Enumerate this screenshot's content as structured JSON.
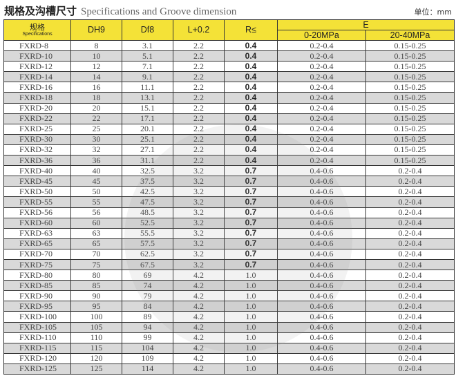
{
  "title": {
    "cn": "规格及沟槽尺寸",
    "en": "Specifications and Groove dimension"
  },
  "unit": "单位：mm",
  "colors": {
    "header": "#f4e237",
    "alt_row": "#d9d9d9",
    "border": "#333333"
  },
  "watermark": "邯郸市鑫液液压机械有限公司",
  "headers": {
    "spec_cn": "规格",
    "spec_en": "Specifications",
    "dh9": "DH9",
    "df8": "Df8",
    "l": "L+0.2",
    "r": "R≤",
    "e": "E",
    "e1": "0-20MPa",
    "e2": "20-40MPa"
  },
  "rows": [
    [
      "FXRD-8",
      "8",
      "3.1",
      "2.2",
      "0.4",
      "0.2-0.4",
      "0.15-0.25"
    ],
    [
      "FXRD-10",
      "10",
      "5.1",
      "2.2",
      "0.4",
      "0.2-0.4",
      "0.15-0.25"
    ],
    [
      "FXRD-12",
      "12",
      "7.1",
      "2.2",
      "0.4",
      "0.2-0.4",
      "0.15-0.25"
    ],
    [
      "FXRD-14",
      "14",
      "9.1",
      "2.2",
      "0.4",
      "0.2-0.4",
      "0.15-0.25"
    ],
    [
      "FXRD-16",
      "16",
      "11.1",
      "2.2",
      "0.4",
      "0.2-0.4",
      "0.15-0.25"
    ],
    [
      "FXRD-18",
      "18",
      "13.1",
      "2.2",
      "0.4",
      "0.2-0.4",
      "0.15-0.25"
    ],
    [
      "FXRD-20",
      "20",
      "15.1",
      "2.2",
      "0.4",
      "0.2-0.4",
      "0.15-0.25"
    ],
    [
      "FXRD-22",
      "22",
      "17.1",
      "2.2",
      "0.4",
      "0.2-0.4",
      "0.15-0.25"
    ],
    [
      "FXRD-25",
      "25",
      "20.1",
      "2.2",
      "0.4",
      "0.2-0.4",
      "0.15-0.25"
    ],
    [
      "FXRD-30",
      "30",
      "25.1",
      "2.2",
      "0.4",
      "0.2-0.4",
      "0.15-0.25"
    ],
    [
      "FXRD-32",
      "32",
      "27.1",
      "2.2",
      "0.4",
      "0.2-0.4",
      "0.15-0.25"
    ],
    [
      "FXRD-36",
      "36",
      "31.1",
      "2.2",
      "0.4",
      "0.2-0.4",
      "0.15-0.25"
    ],
    [
      "FXRD-40",
      "40",
      "32.5",
      "3.2",
      "0.7",
      "0.4-0.6",
      "0.2-0.4"
    ],
    [
      "FXRD-45",
      "45",
      "37.5",
      "3.2",
      "0.7",
      "0.4-0.6",
      "0.2-0.4"
    ],
    [
      "FXRD-50",
      "50",
      "42.5",
      "3.2",
      "0.7",
      "0.4-0.6",
      "0.2-0.4"
    ],
    [
      "FXRD-55",
      "55",
      "47.5",
      "3.2",
      "0.7",
      "0.4-0.6",
      "0.2-0.4"
    ],
    [
      "FXRD-56",
      "56",
      "48.5",
      "3.2",
      "0.7",
      "0.4-0.6",
      "0.2-0.4"
    ],
    [
      "FXRD-60",
      "60",
      "52.5",
      "3.2",
      "0.7",
      "0.4-0.6",
      "0.2-0.4"
    ],
    [
      "FXRD-63",
      "63",
      "55.5",
      "3.2",
      "0.7",
      "0.4-0.6",
      "0.2-0.4"
    ],
    [
      "FXRD-65",
      "65",
      "57.5",
      "3.2",
      "0.7",
      "0.4-0.6",
      "0.2-0.4"
    ],
    [
      "FXRD-70",
      "70",
      "62.5",
      "3.2",
      "0.7",
      "0.4-0.6",
      "0.2-0.4"
    ],
    [
      "FXRD-75",
      "75",
      "67.5",
      "3.2",
      "0.7",
      "0.4-0.6",
      "0.2-0.4"
    ],
    [
      "FXRD-80",
      "80",
      "69",
      "4.2",
      "1.0",
      "0.4-0.6",
      "0.2-0.4"
    ],
    [
      "FXRD-85",
      "85",
      "74",
      "4.2",
      "1.0",
      "0.4-0.6",
      "0.2-0.4"
    ],
    [
      "FXRD-90",
      "90",
      "79",
      "4.2",
      "1.0",
      "0.4-0.6",
      "0.2-0.4"
    ],
    [
      "FXRD-95",
      "95",
      "84",
      "4.2",
      "1.0",
      "0.4-0.6",
      "0.2-0.4"
    ],
    [
      "FXRD-100",
      "100",
      "89",
      "4.2",
      "1.0",
      "0.4-0.6",
      "0.2-0.4"
    ],
    [
      "FXRD-105",
      "105",
      "94",
      "4.2",
      "1.0",
      "0.4-0.6",
      "0.2-0.4"
    ],
    [
      "FXRD-110",
      "110",
      "99",
      "4.2",
      "1.0",
      "0.4-0.6",
      "0.2-0.4"
    ],
    [
      "FXRD-115",
      "115",
      "104",
      "4.2",
      "1.0",
      "0.4-0.6",
      "0.2-0.4"
    ],
    [
      "FXRD-120",
      "120",
      "109",
      "4.2",
      "1.0",
      "0.4-0.6",
      "0.2-0.4"
    ],
    [
      "FXRD-125",
      "125",
      "114",
      "4.2",
      "1.0",
      "0.4-0.6",
      "0.2-0.4"
    ]
  ]
}
